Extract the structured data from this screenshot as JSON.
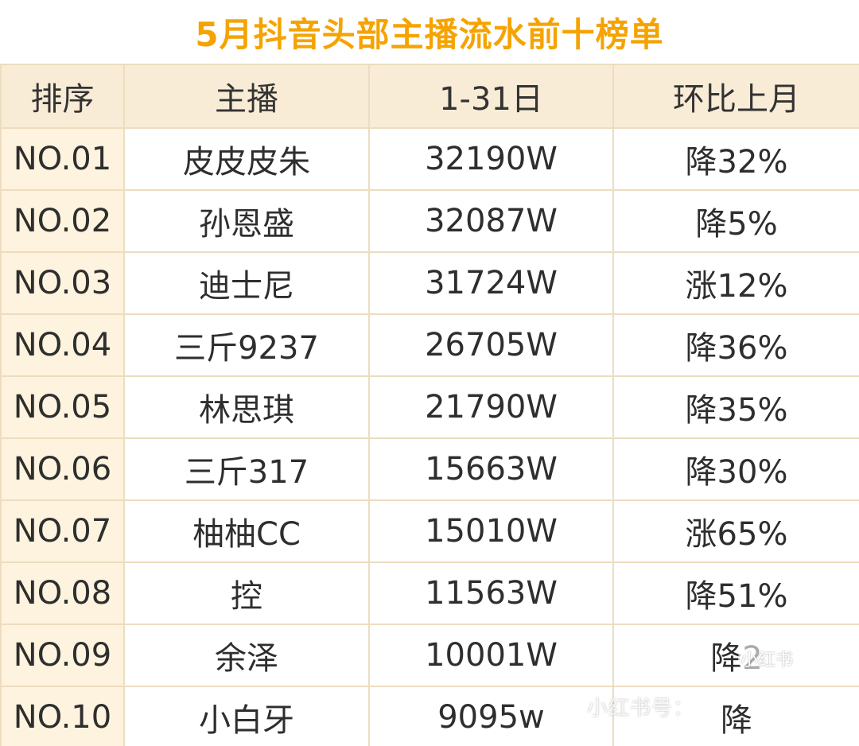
{
  "title": "5月抖音头部主播流水前十榜单",
  "table": {
    "headers": [
      "排序",
      "主播",
      "1-31日",
      "环比上月"
    ],
    "rows": [
      {
        "rank": "NO.01",
        "streamer": "皮皮皮朱",
        "revenue": "32190W",
        "mom": "降32%"
      },
      {
        "rank": "NO.02",
        "streamer": "孙恩盛",
        "revenue": "32087W",
        "mom": "降5%"
      },
      {
        "rank": "NO.03",
        "streamer": "迪士尼",
        "revenue": "31724W",
        "mom": "涨12%"
      },
      {
        "rank": "NO.04",
        "streamer": "三斤9237",
        "revenue": "26705W",
        "mom": "降36%"
      },
      {
        "rank": "NO.05",
        "streamer": "林思琪",
        "revenue": "21790W",
        "mom": "降35%"
      },
      {
        "rank": "NO.06",
        "streamer": "三斤317",
        "revenue": "15663W",
        "mom": "降30%"
      },
      {
        "rank": "NO.07",
        "streamer": "柚柚CC",
        "revenue": "15010W",
        "mom": "涨65%"
      },
      {
        "rank": "NO.08",
        "streamer": "控",
        "revenue": "11563W",
        "mom": "降51%"
      },
      {
        "rank": "NO.09",
        "streamer": "余泽",
        "revenue": "10001W",
        "mom": "降2"
      },
      {
        "rank": "NO.10",
        "streamer": "小白牙",
        "revenue": "9095w",
        "mom": "降"
      }
    ]
  },
  "watermark": {
    "text": "小红书号：",
    "badge": "小红书"
  },
  "colors": {
    "title": "#f5a300",
    "header_bg": "#f9ecd6",
    "rank_bg": "#fdf3de",
    "border": "#eddcc0"
  }
}
